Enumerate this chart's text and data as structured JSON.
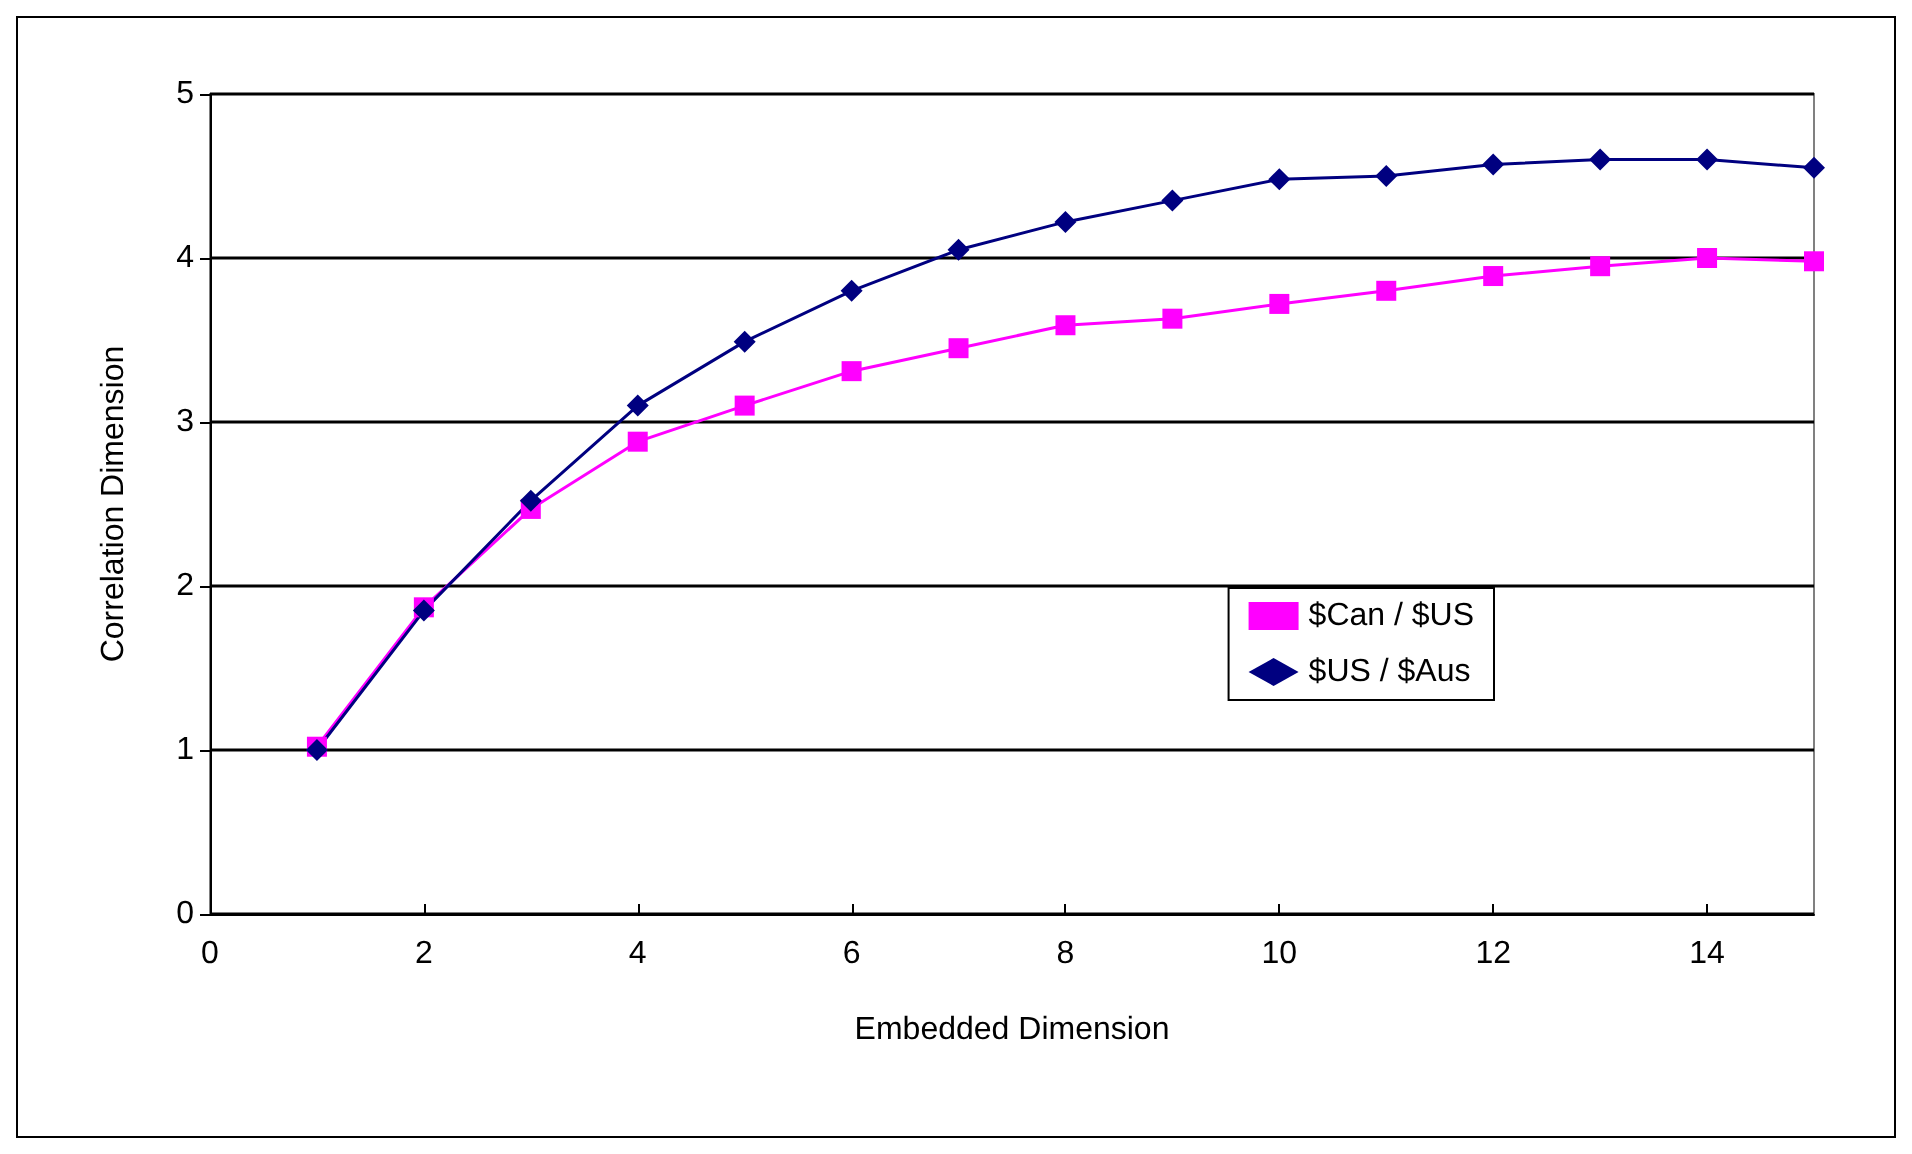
{
  "chart_data": {
    "type": "line",
    "xlabel": "Embedded Dimension",
    "ylabel": "Correlation Dimension",
    "x": [
      1,
      2,
      3,
      4,
      5,
      6,
      7,
      8,
      9,
      10,
      11,
      12,
      13,
      14,
      15
    ],
    "series": [
      {
        "name": "$Can / $US",
        "color": "#ff00ff",
        "marker": "square",
        "values": [
          1.02,
          1.87,
          2.47,
          2.88,
          3.1,
          3.31,
          3.45,
          3.59,
          3.63,
          3.72,
          3.8,
          3.89,
          3.95,
          4.0,
          3.98
        ]
      },
      {
        "name": "$US / $Aus",
        "color": "#000080",
        "marker": "diamond",
        "values": [
          1.0,
          1.85,
          2.52,
          3.1,
          3.49,
          3.8,
          4.05,
          4.22,
          4.35,
          4.48,
          4.5,
          4.57,
          4.6,
          4.6,
          4.55
        ]
      }
    ],
    "xlim": [
      0,
      15
    ],
    "xticks": [
      0,
      2,
      4,
      6,
      8,
      10,
      12,
      14
    ],
    "ylim": [
      0,
      5
    ],
    "yticks": [
      0,
      1,
      2,
      3,
      4,
      5
    ],
    "grid": "y",
    "legend": "right",
    "line_style": "solid"
  }
}
